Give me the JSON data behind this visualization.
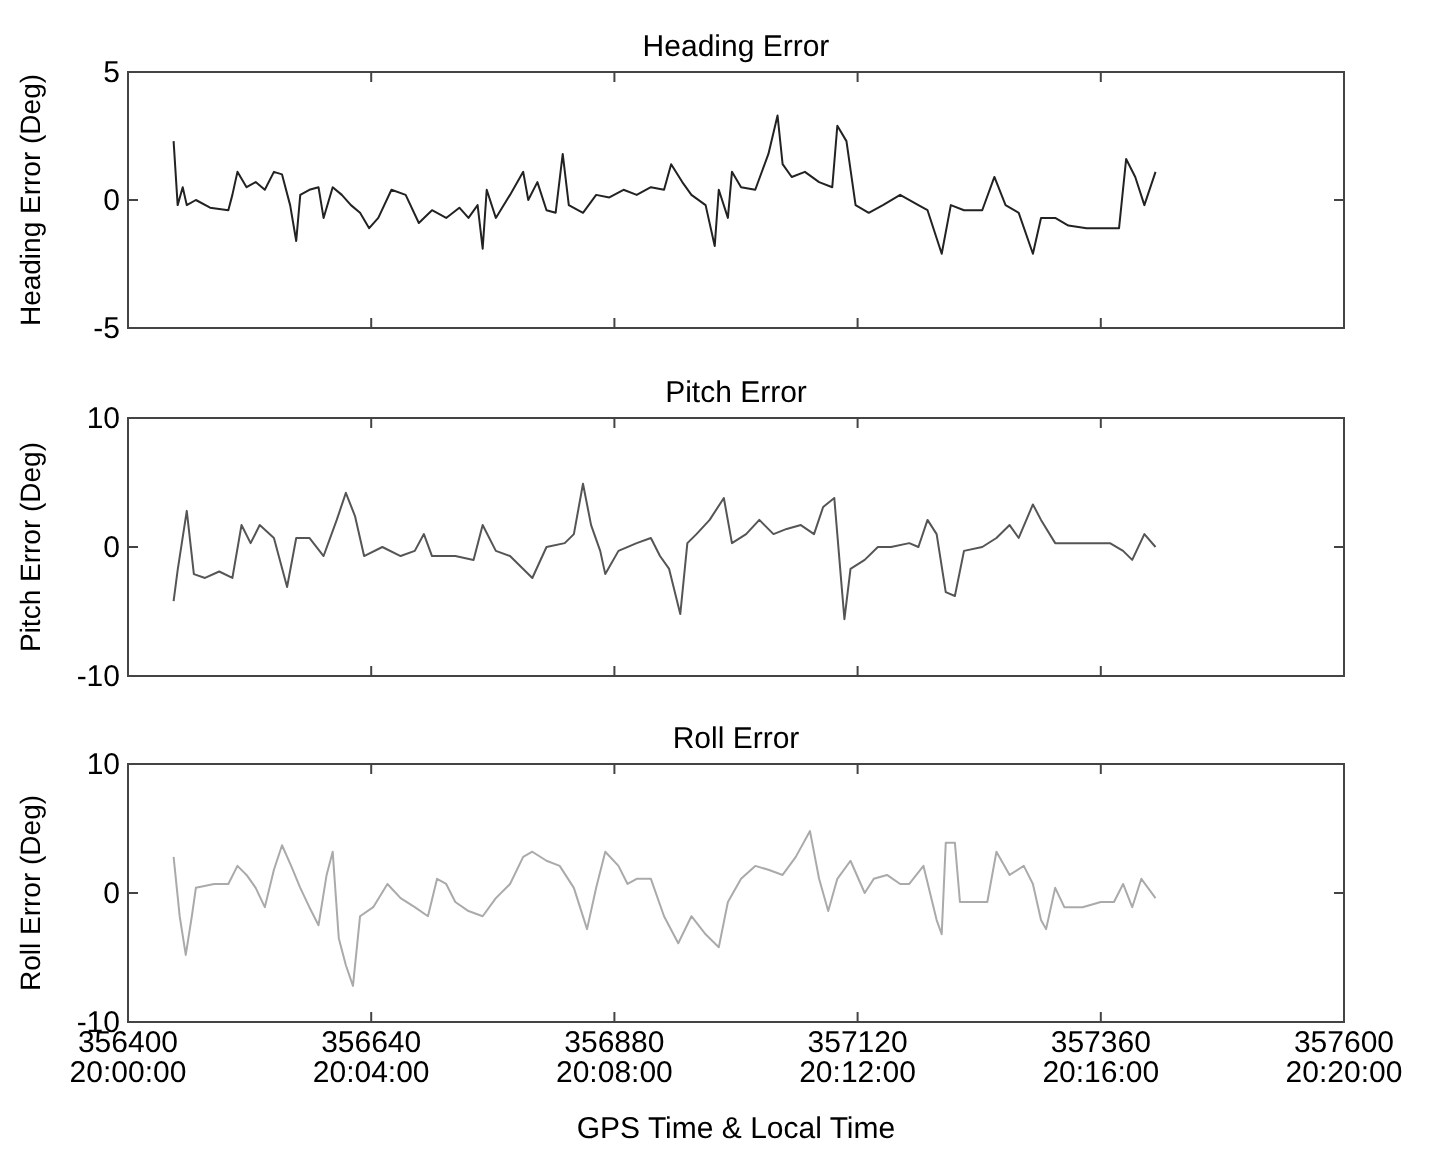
{
  "chart_data": [
    {
      "type": "line",
      "title": "Heading Error",
      "ylabel": "Heading Error (Deg)",
      "xlim": [
        356400,
        357600
      ],
      "xticks": [
        356400,
        356640,
        356880,
        357120,
        357360,
        357600
      ],
      "ylim": [
        -5,
        5
      ],
      "yticks": [
        -5,
        0,
        5
      ],
      "tick_labels": "y",
      "grid": false,
      "marker": "none",
      "line_style": "solid",
      "x": [
        356445,
        356449,
        356454,
        356458,
        356467,
        356481,
        356499,
        356503,
        356508,
        356517,
        356526,
        356535,
        356544,
        356552,
        356560,
        356566,
        356570,
        356579,
        356588,
        356593,
        356602,
        356611,
        356620,
        356629,
        356638,
        356647,
        356660,
        356674,
        356687,
        356700,
        356714,
        356727,
        356736,
        356745,
        356750,
        356754,
        356763,
        356777,
        356790,
        356795,
        356804,
        356813,
        356822,
        356829,
        356835,
        356849,
        356862,
        356875,
        356889,
        356902,
        356916,
        356929,
        356936,
        356947,
        356956,
        356970,
        356979,
        356983,
        356992,
        356996,
        357005,
        357019,
        357032,
        357041,
        357046,
        357055,
        357068,
        357082,
        357095,
        357100,
        357109,
        357118,
        357131,
        357145,
        357162,
        357180,
        357189,
        357203,
        357212,
        357225,
        357243,
        357255,
        357266,
        357279,
        357293,
        357301,
        357315,
        357328,
        357346,
        357364,
        357378,
        357385,
        357394,
        357403,
        357414
      ],
      "series": [
        {
          "color": "#222222",
          "values": [
            2.3,
            -0.2,
            0.5,
            -0.2,
            0,
            -0.3,
            -0.4,
            0.2,
            1.1,
            0.5,
            0.7,
            0.4,
            1.1,
            1.0,
            -0.2,
            -1.6,
            0.2,
            0.4,
            0.5,
            -0.7,
            0.5,
            0.2,
            -0.2,
            -0.5,
            -1.1,
            -0.7,
            0.4,
            0.2,
            -0.9,
            -0.4,
            -0.7,
            -0.3,
            -0.7,
            -0.2,
            -1.9,
            0.4,
            -0.7,
            0.2,
            1.1,
            0,
            0.7,
            -0.4,
            -0.5,
            1.8,
            -0.2,
            -0.5,
            0.2,
            0.1,
            0.4,
            0.2,
            0.5,
            0.4,
            1.4,
            0.7,
            0.2,
            -0.2,
            -1.8,
            0.4,
            -0.7,
            1.1,
            0.5,
            0.4,
            1.8,
            3.3,
            1.4,
            0.9,
            1.1,
            0.7,
            0.5,
            2.9,
            2.3,
            -0.2,
            -0.5,
            -0.2,
            0.2,
            -0.2,
            -0.4,
            -2.1,
            -0.2,
            -0.4,
            -0.4,
            0.9,
            -0.2,
            -0.5,
            -2.1,
            -0.7,
            -0.7,
            -1.0,
            -1.1,
            -1.1,
            -1.1,
            1.6,
            0.9,
            -0.2,
            1.1
          ]
        }
      ]
    },
    {
      "type": "line",
      "title": "Pitch Error",
      "ylabel": "Pitch Error (Deg)",
      "xlim": [
        356400,
        357600
      ],
      "xticks": [
        356400,
        356640,
        356880,
        357120,
        357360,
        357600
      ],
      "ylim": [
        -10,
        10
      ],
      "yticks": [
        -10,
        0,
        10
      ],
      "tick_labels": "y",
      "grid": false,
      "marker": "none",
      "line_style": "solid",
      "x": [
        356445,
        356449,
        356458,
        356465,
        356476,
        356490,
        356503,
        356512,
        356521,
        356530,
        356544,
        356557,
        356566,
        356579,
        356593,
        356606,
        356615,
        356624,
        356633,
        356651,
        356669,
        356683,
        356692,
        356700,
        356723,
        356741,
        356750,
        356763,
        356777,
        356790,
        356799,
        356813,
        356831,
        356840,
        356849,
        356857,
        356866,
        356871,
        356884,
        356902,
        356916,
        356925,
        356934,
        356945,
        356952,
        356961,
        356974,
        356988,
        356996,
        357010,
        357023,
        357037,
        357050,
        357064,
        357077,
        357086,
        357097,
        357104,
        357107,
        357113,
        357127,
        357140,
        357153,
        357171,
        357180,
        357189,
        357198,
        357207,
        357216,
        357225,
        357243,
        357257,
        357270,
        357279,
        357293,
        357301,
        357315,
        357333,
        357351,
        357369,
        357382,
        357391,
        357403,
        357414
      ],
      "series": [
        {
          "color": "#555555",
          "values": [
            -4.2,
            -1.8,
            2.8,
            -2.1,
            -2.4,
            -1.9,
            -2.4,
            1.7,
            0.3,
            1.7,
            0.7,
            -3.1,
            0.7,
            0.7,
            -0.7,
            2.1,
            4.2,
            2.4,
            -0.7,
            0,
            -0.7,
            -0.3,
            1.0,
            -0.7,
            -0.7,
            -1.0,
            1.7,
            -0.3,
            -0.7,
            -1.7,
            -2.4,
            0,
            0.3,
            1.0,
            4.9,
            1.7,
            -0.3,
            -2.1,
            -0.3,
            0.3,
            0.7,
            -0.7,
            -1.7,
            -5.2,
            0.3,
            1.0,
            2.1,
            3.8,
            0.3,
            1.0,
            2.1,
            1.0,
            1.4,
            1.7,
            1.0,
            3.1,
            3.8,
            -2.8,
            -5.6,
            -1.7,
            -1.0,
            0,
            0,
            0.3,
            0,
            2.1,
            1.0,
            -3.5,
            -3.8,
            -0.3,
            0,
            0.7,
            1.7,
            0.7,
            3.3,
            2.1,
            0.3,
            0.3,
            0.3,
            0.3,
            -0.3,
            -1.0,
            1.0,
            0
          ]
        }
      ]
    },
    {
      "type": "line",
      "title": "Roll Error",
      "ylabel": "Roll Error (Deg)",
      "xlabel": "GPS Time & Local Time",
      "xlim": [
        356400,
        357600
      ],
      "xticks": [
        356400,
        356640,
        356880,
        357120,
        357360,
        357600
      ],
      "annotations": [
        "20:00:00",
        "20:04:00",
        "20:08:00",
        "20:12:00",
        "20:16:00",
        "20:20:00"
      ],
      "ylim": [
        -10,
        10
      ],
      "yticks": [
        -10,
        0,
        10
      ],
      "grid": false,
      "marker": "none",
      "line_style": "solid",
      "x": [
        356445,
        356451,
        356457,
        356463,
        356467,
        356485,
        356499,
        356508,
        356517,
        356526,
        356535,
        356544,
        356552,
        356561,
        356570,
        356579,
        356588,
        356596,
        356602,
        356608,
        356615,
        356622,
        356629,
        356642,
        356656,
        356669,
        356683,
        356696,
        356705,
        356714,
        356723,
        356736,
        356750,
        356763,
        356777,
        356790,
        356799,
        356813,
        356826,
        356840,
        356853,
        356862,
        356871,
        356884,
        356893,
        356902,
        356916,
        356929,
        356943,
        356956,
        356970,
        356983,
        356992,
        357005,
        357019,
        357032,
        357046,
        357059,
        357073,
        357082,
        357091,
        357100,
        357113,
        357127,
        357136,
        357149,
        357162,
        357171,
        357185,
        357198,
        357203,
        357207,
        357216,
        357221,
        357234,
        357248,
        357257,
        357270,
        357284,
        357293,
        357301,
        357306,
        357315,
        357324,
        357342,
        357360,
        357373,
        357382,
        357391,
        357400,
        357414
      ],
      "series": [
        {
          "color": "#aaaaaa",
          "values": [
            2.8,
            -1.8,
            -4.8,
            -1.8,
            0.4,
            0.7,
            0.7,
            2.1,
            1.4,
            0.4,
            -1.1,
            1.8,
            3.7,
            2.1,
            0.4,
            -1.1,
            -2.5,
            1.4,
            3.2,
            -3.5,
            -5.6,
            -7.2,
            -1.8,
            -1.1,
            0.7,
            -0.4,
            -1.1,
            -1.8,
            1.1,
            0.7,
            -0.7,
            -1.4,
            -1.8,
            -0.4,
            0.7,
            2.8,
            3.2,
            2.5,
            2.1,
            0.4,
            -2.8,
            0.4,
            3.2,
            2.1,
            0.7,
            1.1,
            1.1,
            -1.8,
            -3.9,
            -1.8,
            -3.2,
            -4.2,
            -0.7,
            1.1,
            2.1,
            1.8,
            1.4,
            2.8,
            4.8,
            1.1,
            -1.4,
            1.1,
            2.5,
            0,
            1.1,
            1.4,
            0.7,
            0.7,
            2.1,
            -2.1,
            -3.2,
            3.9,
            3.9,
            -0.7,
            -0.7,
            -0.7,
            3.2,
            1.4,
            2.1,
            0.7,
            -2.1,
            -2.8,
            0.4,
            -1.1,
            -1.1,
            -0.7,
            -0.7,
            0.7,
            -1.1,
            1.1,
            -0.4
          ]
        }
      ]
    }
  ]
}
